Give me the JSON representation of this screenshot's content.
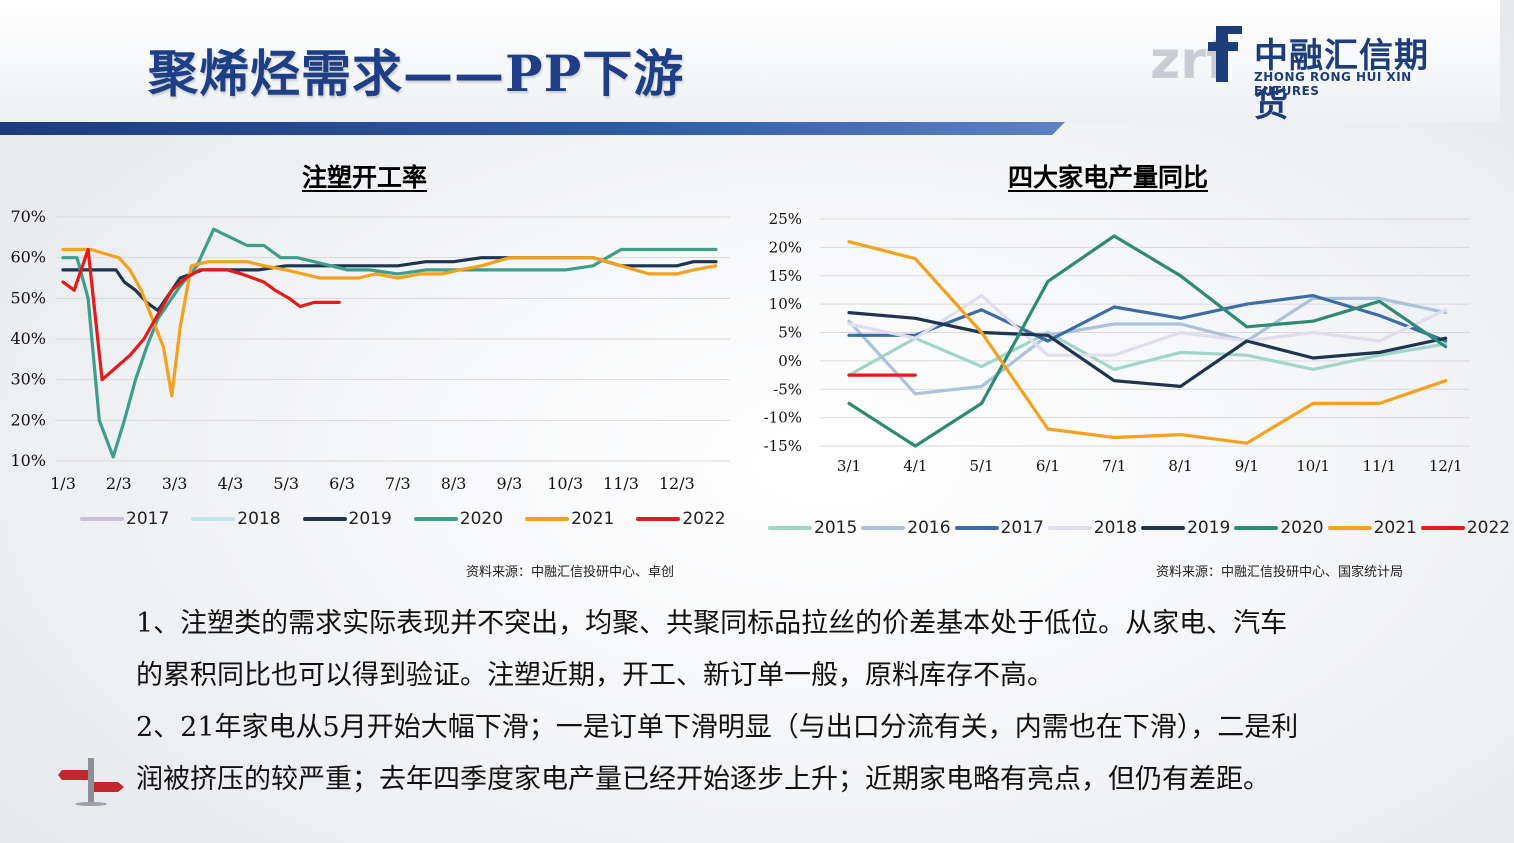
{
  "header": {
    "title": "聚烯烃需求——PP下游",
    "logo_cn": "中融汇信期货",
    "logo_en": "ZHONG RONG HUI XIN FUTURES",
    "logo_mark": "zrf"
  },
  "colors": {
    "title_blue": "#1e3f86",
    "bar_blue": "#2f5aa8"
  },
  "left_chart": {
    "source": "资料来源：中融汇信投研中心、卓创"
  },
  "right_chart": {
    "source": "资料来源：中融汇信投研中心、国家统计局"
  },
  "body": {
    "paragraphs": [
      "1、注塑类的需求实际表现并不突出，均聚、共聚同标品拉丝的价差基本处于低位。从家电、汽车",
      "的累积同比也可以得到验证。注塑近期，开工、新订单一般，原料库存不高。",
      "2、21年家电从5月开始大幅下滑；一是订单下滑明显（与出口分流有关，内需也在下滑），二是利",
      "润被挤压的较严重；去年四季度家电产量已经开始逐步上升；近期家电略有亮点，但仍有差距。"
    ]
  },
  "chart_data": [
    {
      "type": "line",
      "title": "注塑开工率",
      "x_ticks": [
        "1/3",
        "2/3",
        "3/3",
        "4/3",
        "5/3",
        "6/3",
        "7/3",
        "8/3",
        "9/3",
        "10/3",
        "11/3",
        "12/3"
      ],
      "y_ticks": [
        "10%",
        "20%",
        "30%",
        "40%",
        "50%",
        "60%",
        "70%"
      ],
      "ylim": [
        10,
        70
      ],
      "xlim": [
        0,
        11.7
      ],
      "grid": true,
      "legend_position": "bottom",
      "series": [
        {
          "name": "2017",
          "color": "#cbbfdd",
          "x": [],
          "y": []
        },
        {
          "name": "2018",
          "color": "#bfe3ea",
          "x": [],
          "y": []
        },
        {
          "name": "2019",
          "color": "#1d3550",
          "x": [
            0,
            0.25,
            0.5,
            0.75,
            0.95,
            1.1,
            1.3,
            1.5,
            1.7,
            1.9,
            2.1,
            2.3,
            2.5,
            3.0,
            3.5,
            4.0,
            4.5,
            5.0,
            5.5,
            6.0,
            6.5,
            7.0,
            7.5,
            8.0,
            8.5,
            9.0,
            9.5,
            10.0,
            10.5,
            11.0,
            11.3,
            11.7
          ],
          "y": [
            57,
            57,
            57,
            57,
            57,
            54,
            52,
            49,
            47,
            51,
            55,
            56,
            57,
            57,
            57,
            58,
            58,
            58,
            58,
            58,
            59,
            59,
            60,
            60,
            60,
            60,
            60,
            58,
            58,
            58,
            59,
            59
          ]
        },
        {
          "name": "2020",
          "color": "#3e9e8c",
          "x": [
            0,
            0.25,
            0.45,
            0.65,
            0.9,
            1.1,
            1.3,
            1.5,
            1.7,
            1.9,
            2.1,
            2.4,
            2.7,
            2.85,
            3.0,
            3.3,
            3.6,
            3.9,
            4.2,
            4.5,
            4.8,
            5.1,
            5.5,
            6.0,
            6.5,
            7.0,
            7.5,
            8.0,
            8.5,
            9.0,
            9.5,
            10.0,
            10.5,
            11.0,
            11.3,
            11.7
          ],
          "y": [
            60,
            60,
            50,
            20,
            11,
            20,
            30,
            38,
            45,
            49,
            53,
            58,
            67,
            66,
            65,
            63,
            63,
            60,
            60,
            59,
            58,
            57,
            57,
            56,
            57,
            57,
            57,
            57,
            57,
            57,
            58,
            62,
            62,
            62,
            62,
            62
          ]
        },
        {
          "name": "2021",
          "color": "#f4a11e",
          "x": [
            0,
            0.25,
            0.5,
            0.75,
            1.0,
            1.2,
            1.4,
            1.6,
            1.8,
            1.95,
            2.1,
            2.3,
            2.6,
            3.0,
            3.3,
            3.6,
            4.0,
            4.3,
            4.6,
            5.0,
            5.3,
            5.6,
            6.0,
            6.4,
            6.8,
            7.1,
            7.5,
            8.0,
            8.5,
            9.0,
            9.5,
            10.0,
            10.5,
            11.0,
            11.3,
            11.7
          ],
          "y": [
            62,
            62,
            62,
            61,
            60,
            57,
            52,
            45,
            38,
            26,
            43,
            58,
            59,
            59,
            59,
            58,
            57,
            56,
            55,
            55,
            55,
            56,
            55,
            56,
            56,
            57,
            58,
            60,
            60,
            60,
            60,
            58,
            56,
            56,
            57,
            58
          ]
        },
        {
          "name": "2022",
          "color": "#e51a1a",
          "x": [
            0,
            0.2,
            0.45,
            0.7,
            0.95,
            1.2,
            1.45,
            1.7,
            1.95,
            2.2,
            2.45,
            2.7,
            2.95,
            3.2,
            3.4,
            3.6,
            3.8,
            4.05,
            4.25,
            4.5,
            4.75,
            4.95
          ],
          "y": [
            54,
            52,
            62,
            30,
            33,
            36,
            40,
            46,
            52,
            55,
            57,
            57,
            57,
            56,
            55,
            54,
            52,
            50,
            48,
            49,
            49,
            49
          ]
        }
      ]
    },
    {
      "type": "line",
      "title": "四大家电产量同比",
      "x_ticks": [
        "3/1",
        "4/1",
        "5/1",
        "6/1",
        "7/1",
        "8/1",
        "9/1",
        "10/1",
        "11/1",
        "12/1"
      ],
      "y_ticks": [
        "25%",
        "20%",
        "15%",
        "10%",
        "5%",
        "0%",
        "-5%",
        "-10%",
        "-15%"
      ],
      "ylim": [
        -15,
        25
      ],
      "grid": true,
      "legend_position": "bottom",
      "series": [
        {
          "name": "2015",
          "color": "#9fd6c8",
          "x": [
            3,
            4,
            5,
            6,
            7,
            8,
            9,
            10,
            11,
            12
          ],
          "y": [
            -2.5,
            4.0,
            -1.0,
            5.0,
            -1.5,
            1.5,
            1.0,
            -1.5,
            1.0,
            3.0
          ]
        },
        {
          "name": "2016",
          "color": "#a9c2dd",
          "x": [
            3,
            4,
            5,
            6,
            7,
            8,
            9,
            10,
            11,
            12
          ],
          "y": [
            7.0,
            -5.8,
            -4.5,
            4.5,
            6.5,
            6.5,
            3.5,
            11.0,
            11.0,
            8.5
          ]
        },
        {
          "name": "2017",
          "color": "#3a6ca8",
          "x": [
            3,
            4,
            5,
            6,
            7,
            8,
            9,
            10,
            11,
            12
          ],
          "y": [
            4.5,
            4.5,
            9.0,
            3.5,
            9.5,
            7.5,
            10.0,
            11.5,
            8.0,
            3.5
          ]
        },
        {
          "name": "2018",
          "color": "#e2ddee",
          "x": [
            3,
            4,
            5,
            6,
            7,
            8,
            9,
            10,
            11,
            12
          ],
          "y": [
            6.5,
            4.0,
            11.5,
            1.0,
            1.0,
            5.0,
            3.5,
            5.0,
            3.5,
            9.0
          ]
        },
        {
          "name": "2019",
          "color": "#1d3550",
          "x": [
            3,
            4,
            5,
            6,
            7,
            8,
            9,
            10,
            11,
            12
          ],
          "y": [
            8.5,
            7.5,
            5.0,
            4.5,
            -3.5,
            -4.5,
            3.5,
            0.5,
            1.5,
            4.0
          ]
        },
        {
          "name": "2020",
          "color": "#2f8a72",
          "x": [
            3,
            4,
            5,
            6,
            7,
            8,
            9,
            10,
            11,
            12
          ],
          "y": [
            -7.5,
            -15.0,
            -7.5,
            14.0,
            22.0,
            15.0,
            6.0,
            7.0,
            10.5,
            2.5
          ]
        },
        {
          "name": "2021",
          "color": "#f4a11e",
          "x": [
            3,
            4,
            5,
            6,
            7,
            8,
            9,
            10,
            11,
            12
          ],
          "y": [
            21.0,
            18.0,
            5.0,
            -12.0,
            -13.5,
            -13.0,
            -14.5,
            -7.5,
            -7.5,
            -3.5
          ]
        },
        {
          "name": "2022",
          "color": "#e51a1a",
          "x": [
            3,
            4
          ],
          "y": [
            -2.5,
            -2.5
          ]
        }
      ]
    }
  ]
}
